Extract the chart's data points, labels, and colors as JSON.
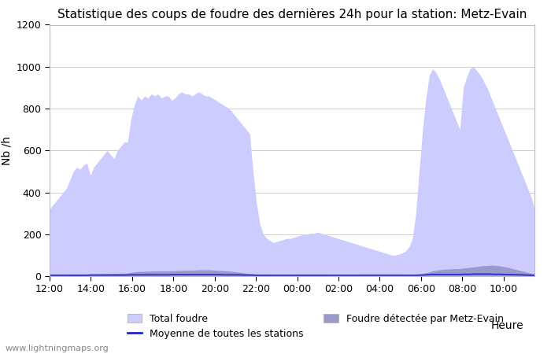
{
  "title": "Statistique des coups de foudre des dernières 24h pour la station: Metz-Evain",
  "xlabel": "Heure",
  "ylabel": "Nb /h",
  "ylim": [
    0,
    1200
  ],
  "yticks": [
    0,
    200,
    400,
    600,
    800,
    1000,
    1200
  ],
  "x_labels": [
    "12:00",
    "14:00",
    "16:00",
    "18:00",
    "20:00",
    "22:00",
    "00:00",
    "02:00",
    "04:00",
    "06:00",
    "08:00",
    "10:00"
  ],
  "bg_color": "#ffffff",
  "plot_bg_color": "#ffffff",
  "grid_color": "#cccccc",
  "total_foudre_color": "#ccccff",
  "local_foudre_color": "#9999cc",
  "moyenne_color": "#2222cc",
  "watermark": "www.lightningmaps.org",
  "legend_labels": [
    "Total foudre",
    "Moyenne de toutes les stations",
    "Foudre détectée par Metz-Evain"
  ],
  "n_points": 144,
  "total_foudre": [
    320,
    340,
    360,
    380,
    400,
    420,
    460,
    500,
    520,
    510,
    530,
    540,
    480,
    520,
    540,
    560,
    580,
    600,
    580,
    560,
    600,
    620,
    640,
    640,
    750,
    820,
    860,
    840,
    860,
    850,
    870,
    860,
    870,
    850,
    860,
    860,
    840,
    850,
    870,
    880,
    870,
    870,
    860,
    870,
    880,
    870,
    860,
    860,
    850,
    840,
    830,
    820,
    810,
    800,
    780,
    760,
    740,
    720,
    700,
    680,
    500,
    350,
    250,
    200,
    180,
    170,
    160,
    165,
    170,
    175,
    180,
    180,
    185,
    190,
    195,
    200,
    200,
    205,
    205,
    210,
    205,
    200,
    195,
    190,
    185,
    180,
    175,
    170,
    165,
    160,
    155,
    150,
    145,
    140,
    135,
    130,
    125,
    120,
    115,
    110,
    105,
    100,
    100,
    105,
    110,
    120,
    140,
    180,
    300,
    500,
    700,
    850,
    960,
    990,
    970,
    940,
    900,
    860,
    820,
    780,
    740,
    700,
    900,
    950,
    990,
    1000,
    980,
    960,
    930,
    900,
    860,
    820,
    780,
    740,
    700,
    660,
    620,
    580,
    540,
    500,
    460,
    420,
    380,
    320
  ],
  "local_foudre": [
    5,
    5,
    5,
    6,
    6,
    6,
    7,
    8,
    8,
    8,
    9,
    9,
    10,
    10,
    11,
    11,
    12,
    12,
    12,
    13,
    13,
    14,
    14,
    15,
    18,
    20,
    22,
    22,
    23,
    23,
    24,
    24,
    25,
    25,
    25,
    25,
    26,
    26,
    27,
    27,
    28,
    28,
    28,
    29,
    30,
    30,
    30,
    30,
    29,
    28,
    27,
    26,
    25,
    24,
    22,
    20,
    18,
    16,
    14,
    12,
    10,
    8,
    7,
    6,
    5,
    5,
    4,
    4,
    4,
    4,
    4,
    4,
    4,
    4,
    5,
    5,
    5,
    5,
    5,
    5,
    5,
    5,
    4,
    4,
    4,
    4,
    4,
    4,
    4,
    4,
    4,
    3,
    3,
    3,
    3,
    3,
    3,
    3,
    3,
    3,
    3,
    3,
    3,
    3,
    3,
    4,
    4,
    4,
    5,
    8,
    12,
    16,
    20,
    25,
    28,
    30,
    32,
    33,
    34,
    35,
    35,
    36,
    38,
    40,
    42,
    44,
    46,
    48,
    50,
    50,
    52,
    52,
    50,
    48,
    45,
    42,
    38,
    34,
    30,
    26,
    22,
    18,
    14,
    10
  ],
  "moyenne": [
    4,
    4,
    4,
    4,
    4,
    4,
    4,
    4,
    4,
    4,
    4,
    4,
    5,
    5,
    5,
    5,
    5,
    5,
    5,
    5,
    5,
    5,
    5,
    5,
    6,
    6,
    6,
    6,
    6,
    6,
    6,
    6,
    6,
    6,
    6,
    6,
    7,
    7,
    7,
    7,
    7,
    7,
    7,
    7,
    7,
    7,
    7,
    7,
    7,
    7,
    7,
    6,
    6,
    6,
    6,
    6,
    6,
    5,
    5,
    5,
    5,
    4,
    4,
    4,
    4,
    4,
    4,
    4,
    4,
    4,
    4,
    4,
    4,
    4,
    4,
    4,
    4,
    4,
    4,
    4,
    4,
    4,
    4,
    4,
    4,
    4,
    4,
    4,
    4,
    4,
    4,
    4,
    4,
    4,
    4,
    4,
    4,
    4,
    4,
    4,
    4,
    4,
    4,
    4,
    4,
    4,
    4,
    4,
    4,
    5,
    5,
    6,
    7,
    8,
    8,
    8,
    8,
    8,
    8,
    8,
    8,
    8,
    9,
    9,
    9,
    10,
    10,
    10,
    10,
    10,
    10,
    9,
    9,
    9,
    8,
    8,
    7,
    7,
    6,
    6,
    5,
    5,
    4,
    4
  ]
}
